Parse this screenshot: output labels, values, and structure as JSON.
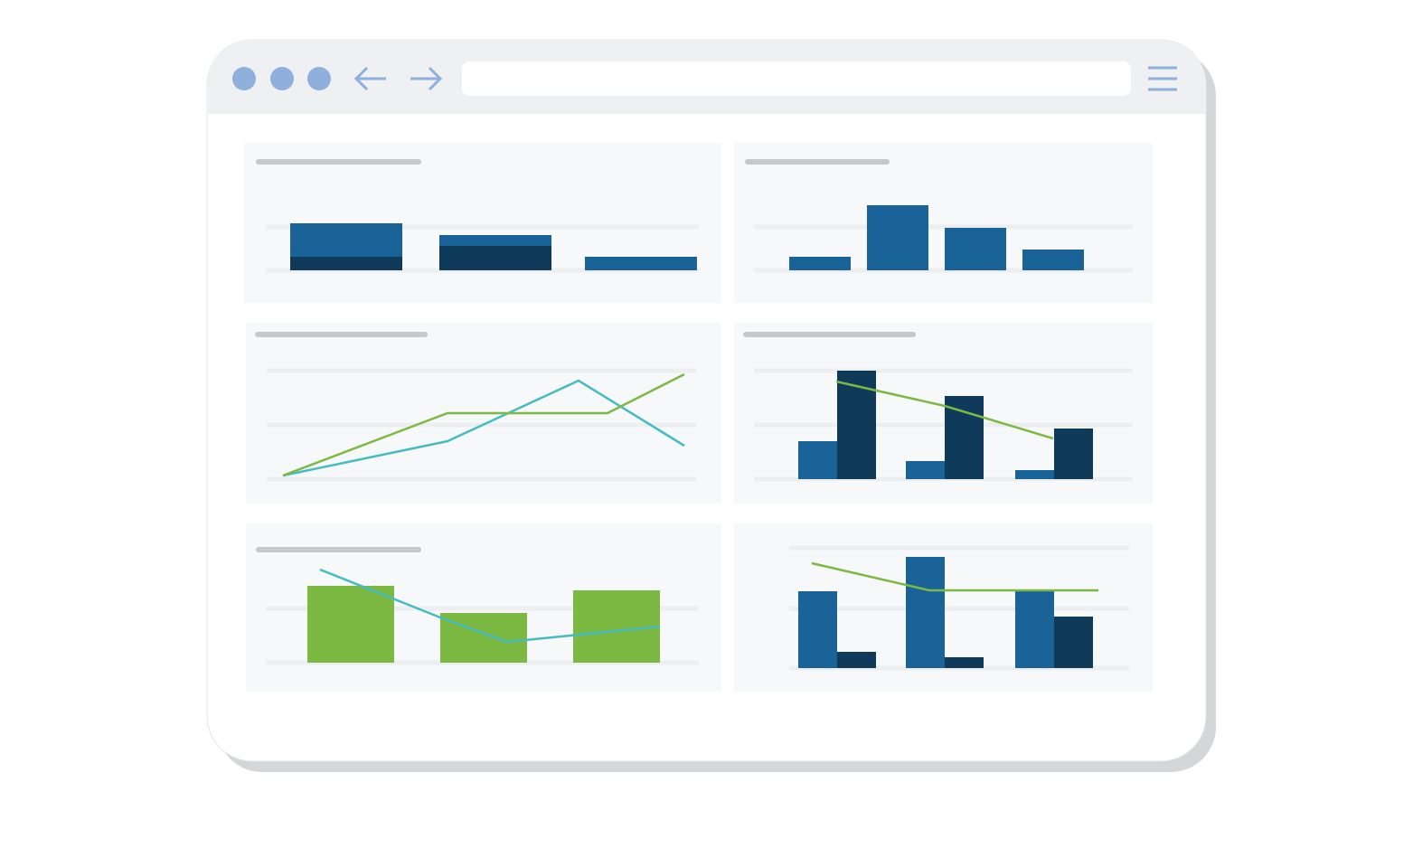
{
  "chart_data": [
    {
      "type": "bar",
      "stacked": true,
      "ylim": [
        0,
        100
      ],
      "grid": true,
      "series": [
        {
          "color": "#103a5a",
          "values": [
            15,
            27,
            0
          ]
        },
        {
          "color": "#1a6399",
          "values": [
            37,
            12,
            15
          ]
        }
      ]
    },
    {
      "type": "bar",
      "ylim": [
        0,
        100
      ],
      "grid": true,
      "color": "#1a6399",
      "values": [
        15,
        72,
        47,
        23
      ]
    },
    {
      "type": "line",
      "ylim": [
        0,
        120
      ],
      "xlim": [
        0,
        444
      ],
      "grid": true,
      "series": [
        {
          "color": "#45bcc0",
          "x": [
            0,
            182,
            327,
            444
          ],
          "values": [
            4,
            42,
            109,
            37
          ]
        },
        {
          "color": "#7cb942",
          "x": [
            0,
            182,
            359,
            444
          ],
          "values": [
            4,
            73,
            73,
            116
          ]
        }
      ]
    },
    {
      "type": "combo",
      "ylim": [
        0,
        120
      ],
      "xlim": [
        0,
        240
      ],
      "grid": true,
      "series": [
        {
          "kind": "bar",
          "color": "#1a6399",
          "values": [
            42,
            20,
            10
          ]
        },
        {
          "kind": "bar",
          "color": "#103a5a",
          "values": [
            120,
            92,
            56
          ]
        },
        {
          "kind": "line",
          "color": "#7cb942",
          "x": [
            0,
            120,
            240
          ],
          "values": [
            108,
            81,
            45
          ]
        }
      ]
    },
    {
      "type": "combo",
      "ylim": [
        0,
        110
      ],
      "xlim": [
        0,
        390
      ],
      "grid": true,
      "series": [
        {
          "kind": "bar",
          "color": "#7cb942",
          "values": [
            85,
            55,
            80
          ]
        },
        {
          "kind": "line",
          "color": "#45bcc0",
          "x": [
            14,
            147,
            221,
            390
          ],
          "values": [
            103,
            50,
            23,
            40
          ]
        }
      ]
    },
    {
      "type": "combo",
      "ylim": [
        0,
        133
      ],
      "xlim": [
        0,
        317
      ],
      "grid": true,
      "series": [
        {
          "kind": "bar",
          "color": "#1a6399",
          "values": [
            85,
            123,
            85
          ]
        },
        {
          "kind": "bar",
          "color": "#103a5a",
          "values": [
            18,
            12,
            57
          ]
        },
        {
          "kind": "line",
          "color": "#7cb942",
          "x": [
            0,
            130,
            317
          ],
          "values": [
            116,
            86,
            86
          ]
        }
      ]
    }
  ]
}
